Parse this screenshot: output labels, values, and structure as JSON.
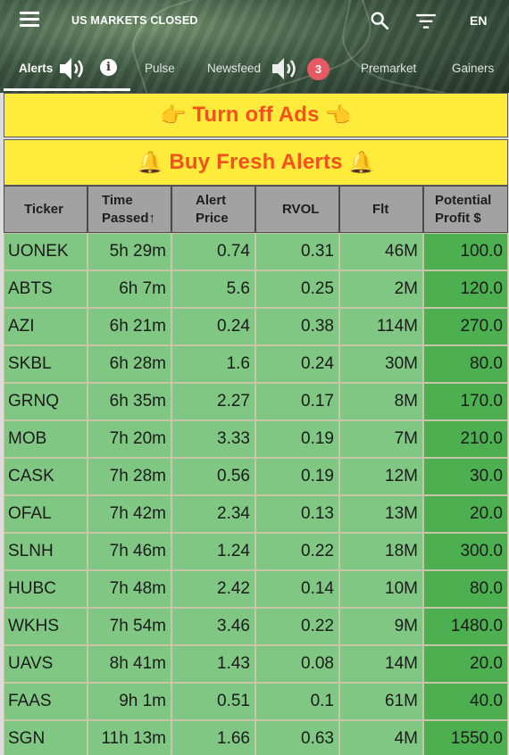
{
  "header": {
    "market_status": "US MARKETS CLOSED",
    "language": "EN",
    "icons": {
      "menu": "menu-icon",
      "search": "search-icon",
      "filter": "filter-icon",
      "speaker": "speaker-icon",
      "info": "info-icon"
    }
  },
  "tabs": [
    {
      "label": "Alerts",
      "active": true
    },
    {
      "label": "Pulse"
    },
    {
      "label": "Newsfeed",
      "badge": "3"
    },
    {
      "label": "Premarket"
    },
    {
      "label": "Gainers"
    }
  ],
  "banners": {
    "ads": {
      "text": "Turn off Ads",
      "left_emoji": "👉",
      "right_emoji": "👈"
    },
    "alerts": {
      "text": "Buy Fresh Alerts",
      "left_emoji": "🔔",
      "right_emoji": "🔔"
    }
  },
  "colors": {
    "banner_bg": "#ffeb3b",
    "banner_text": "#f4511e",
    "row_bg": "#81c784",
    "profit_bg": "#4caf50",
    "header_bg": "#a2a2a2",
    "badge": "#e85a63"
  },
  "table": {
    "columns": [
      {
        "line1": "Ticker",
        "line2": ""
      },
      {
        "line1": "Time",
        "line2": "Passed↑"
      },
      {
        "line1": "Alert",
        "line2": "Price"
      },
      {
        "line1": "RVOL",
        "line2": ""
      },
      {
        "line1": "Flt",
        "line2": ""
      },
      {
        "line1": "Potential",
        "line2": "Profit $"
      }
    ],
    "rows": [
      [
        "UONEK",
        "5h 29m",
        "0.74",
        "0.31",
        "46M",
        "100.0"
      ],
      [
        "ABTS",
        "6h 7m",
        "5.6",
        "0.25",
        "2M",
        "120.0"
      ],
      [
        "AZI",
        "6h 21m",
        "0.24",
        "0.38",
        "114M",
        "270.0"
      ],
      [
        "SKBL",
        "6h 28m",
        "1.6",
        "0.24",
        "30M",
        "80.0"
      ],
      [
        "GRNQ",
        "6h 35m",
        "2.27",
        "0.17",
        "8M",
        "170.0"
      ],
      [
        "MOB",
        "7h 20m",
        "3.33",
        "0.19",
        "7M",
        "210.0"
      ],
      [
        "CASK",
        "7h 28m",
        "0.56",
        "0.19",
        "12M",
        "30.0"
      ],
      [
        "OFAL",
        "7h 42m",
        "2.34",
        "0.13",
        "13M",
        "20.0"
      ],
      [
        "SLNH",
        "7h 46m",
        "1.24",
        "0.22",
        "18M",
        "300.0"
      ],
      [
        "HUBC",
        "7h 48m",
        "2.42",
        "0.14",
        "10M",
        "80.0"
      ],
      [
        "WKHS",
        "7h 54m",
        "3.46",
        "0.22",
        "9M",
        "1480.0"
      ],
      [
        "UAVS",
        "8h 41m",
        "1.43",
        "0.08",
        "14M",
        "20.0"
      ],
      [
        "FAAS",
        "9h 1m",
        "0.51",
        "0.1",
        "61M",
        "40.0"
      ],
      [
        "SGN",
        "11h 13m",
        "1.66",
        "0.63",
        "4M",
        "1550.0"
      ]
    ]
  }
}
